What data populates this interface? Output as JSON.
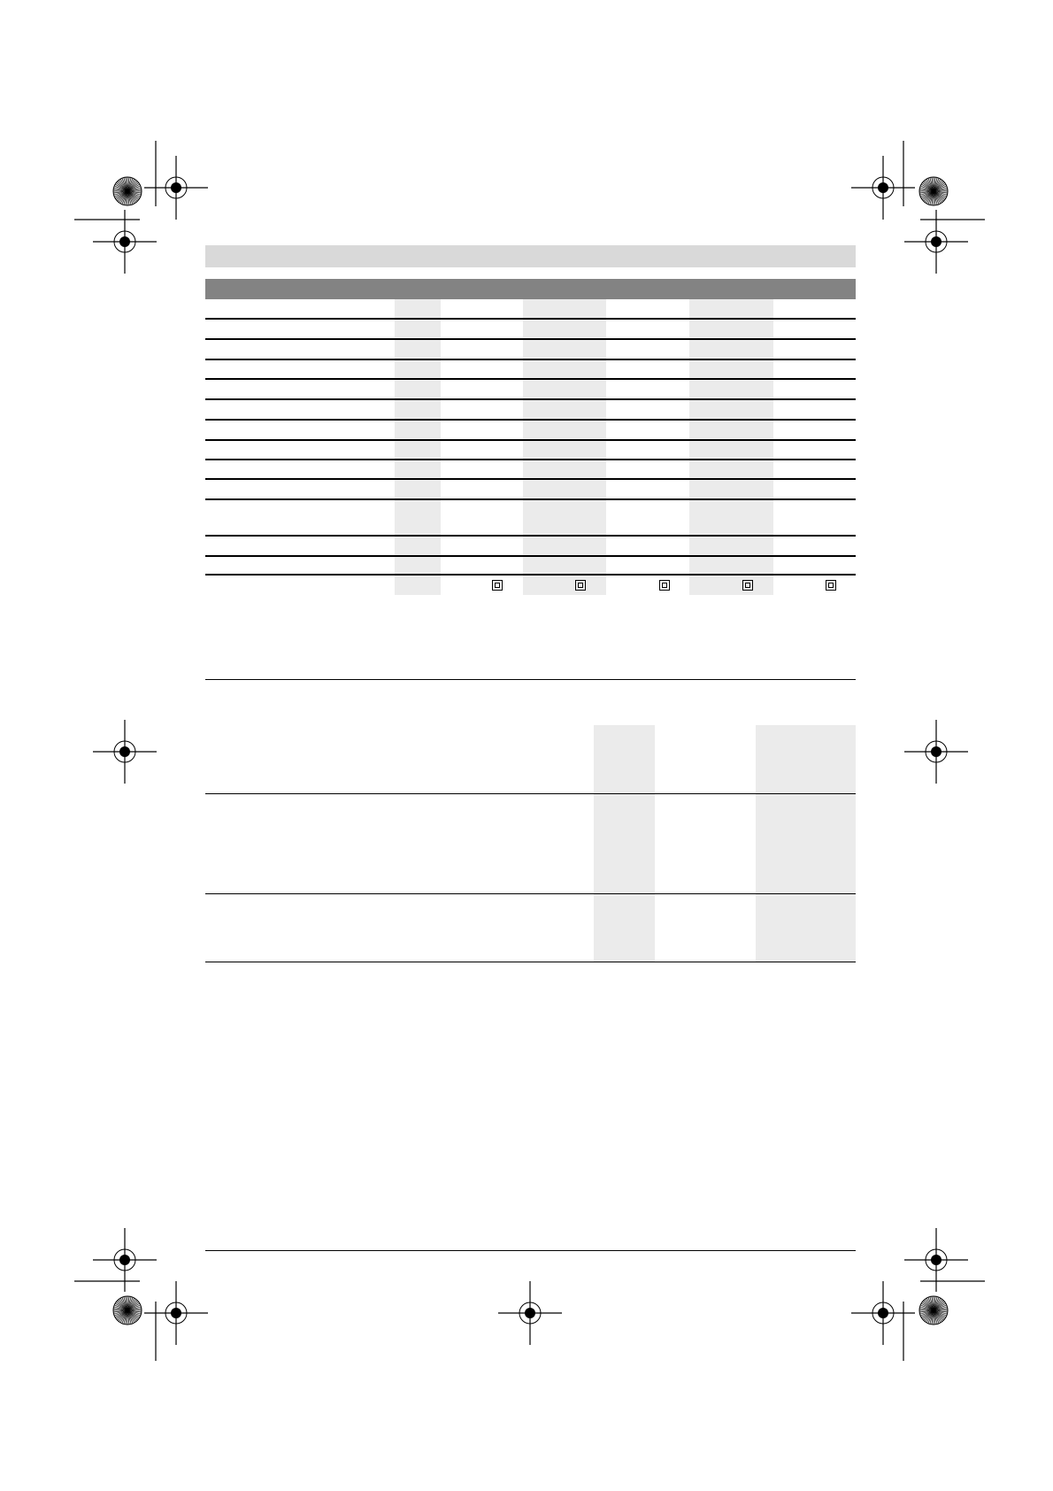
{
  "colors": {
    "header_band": "#d9d9d9",
    "table_header": "#838383",
    "column_shade": "#ebebeb",
    "rule": "#000000"
  },
  "table1": {
    "row_count": 13,
    "shaded_columns": 3,
    "footer_icons": [
      "class-ii-double-insulation-icon",
      "class-ii-double-insulation-icon",
      "class-ii-double-insulation-icon",
      "class-ii-double-insulation-icon",
      "class-ii-double-insulation-icon"
    ]
  },
  "table2": {
    "row_count": 3,
    "shaded_columns": 2
  },
  "print_marks": {
    "registration": "crosshair-registration-icon",
    "color_bar": "starburst-icon"
  }
}
